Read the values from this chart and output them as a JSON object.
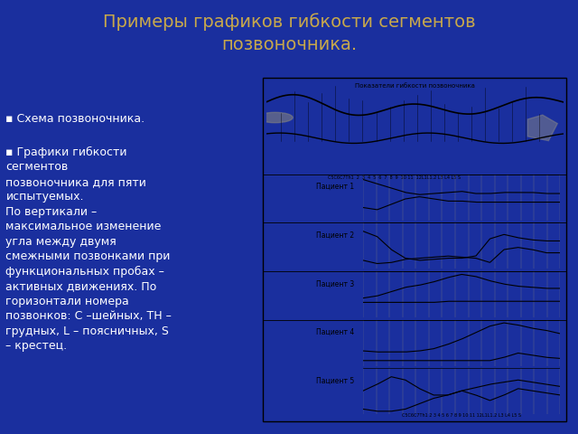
{
  "title": "Примеры графиков гибкости сегментов\nпозвоночника.",
  "title_color": "#c8a84b",
  "background_color": "#1a2f9e",
  "right_panel_bg": "#ffffff",
  "bullet1": "Схема позвоночника.",
  "bullet2": "Графики гибкости\nсегментов\nпозвоночника для пяти\nиспытуемых.\nПо вертикали –\nмаксимальное изменение\nугла между двумя\nсмежными позвонками при\nфункциональных пробах –\nактивных движениях. По\nгоризонтали номера\nпозвонков: С –шейных, ТН –\nгрудных, L – поясничных, S\n– крестец.",
  "panel_title": "Показатели гибкости позвоночника",
  "patient_labels": [
    "Пациент 1",
    "Пациент 2",
    "Пациент 3",
    "Пациент 4",
    "Пациент 5"
  ],
  "x_bottom_label": "С5С6С7Th1 2 3 4 5 6 7 8 9 10 11 12L1L1.2 L3 L4 L5 S",
  "patient1_upper": [
    3.8,
    3.4,
    3.0,
    2.6,
    2.4,
    2.5,
    2.6,
    2.7,
    2.5,
    2.5,
    2.6,
    2.6,
    2.6,
    2.5,
    2.5
  ],
  "patient1_lower": [
    1.2,
    1.0,
    1.5,
    2.0,
    2.2,
    2.0,
    1.8,
    1.8,
    1.7,
    1.7,
    1.7,
    1.7,
    1.7,
    1.7,
    1.7
  ],
  "patient2_upper": [
    3.5,
    3.0,
    1.8,
    1.0,
    0.8,
    0.9,
    1.0,
    1.0,
    1.2,
    2.8,
    3.2,
    2.9,
    2.7,
    2.6,
    2.6
  ],
  "patient2_lower": [
    0.8,
    0.5,
    0.6,
    0.9,
    1.0,
    1.1,
    1.2,
    1.1,
    1.0,
    0.6,
    1.8,
    2.0,
    1.8,
    1.5,
    1.5
  ],
  "patient3_upper": [
    1.8,
    2.0,
    2.4,
    2.8,
    3.0,
    3.3,
    3.7,
    4.0,
    3.8,
    3.4,
    3.1,
    2.9,
    2.8,
    2.7,
    2.7
  ],
  "patient3_lower": [
    1.4,
    1.4,
    1.4,
    1.4,
    1.4,
    1.4,
    1.5,
    1.5,
    1.5,
    1.5,
    1.5,
    1.5,
    1.5,
    1.5,
    1.5
  ],
  "patient4_upper": [
    1.4,
    1.3,
    1.3,
    1.3,
    1.4,
    1.6,
    2.0,
    2.5,
    3.1,
    3.7,
    4.0,
    3.8,
    3.5,
    3.3,
    3.0
  ],
  "patient4_lower": [
    0.5,
    0.5,
    0.5,
    0.5,
    0.5,
    0.5,
    0.5,
    0.5,
    0.5,
    0.5,
    0.8,
    1.2,
    1.0,
    0.8,
    0.7
  ],
  "patient5_upper": [
    2.2,
    2.8,
    3.5,
    3.2,
    2.4,
    1.8,
    1.8,
    2.2,
    1.8,
    1.3,
    1.8,
    2.4,
    2.2,
    2.0,
    1.8
  ],
  "patient5_lower": [
    0.5,
    0.3,
    0.3,
    0.5,
    1.0,
    1.5,
    1.8,
    2.2,
    2.5,
    2.8,
    3.0,
    3.2,
    3.0,
    2.8,
    2.6
  ]
}
